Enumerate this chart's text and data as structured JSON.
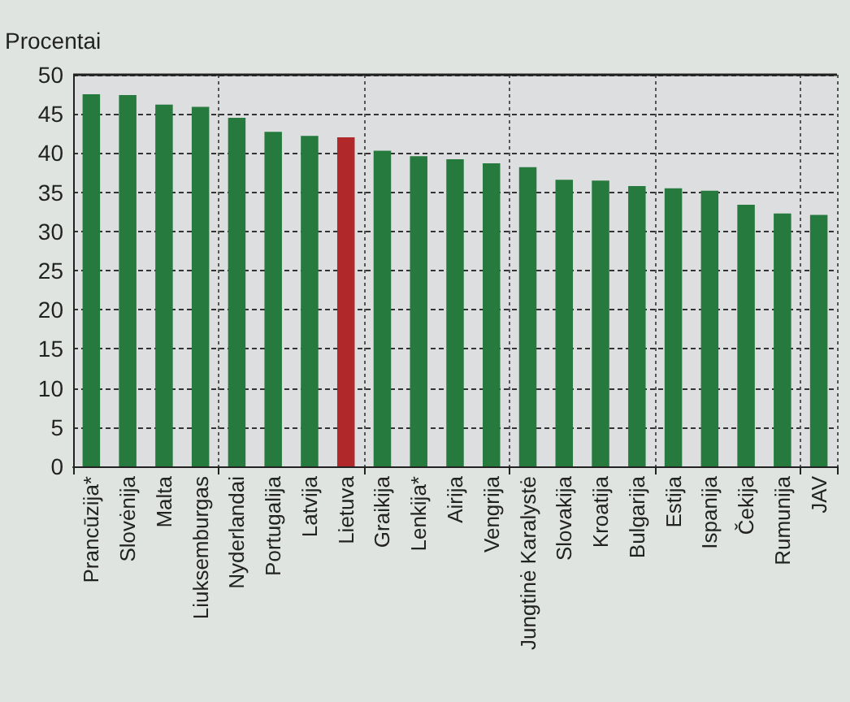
{
  "chart_data": {
    "type": "bar",
    "ylabel": "Procentai",
    "categories": [
      "Prancūzija*",
      "Slovėnija",
      "Malta",
      "Liuksemburgas",
      "Nyderlandai",
      "Portugalija",
      "Latvija",
      "Lietuva",
      "Graikija",
      "Lenkija*",
      "Airija",
      "Vengrija",
      "Jungtinė Karalystė",
      "Slovakija",
      "Kroatija",
      "Bulgarija",
      "Estija",
      "Ispanija",
      "Čekija",
      "Rumunija",
      "JAV"
    ],
    "values": [
      47.5,
      47.4,
      46.2,
      45.9,
      44.5,
      42.7,
      42.2,
      42.0,
      40.3,
      39.6,
      39.2,
      38.7,
      38.2,
      36.6,
      36.5,
      35.8,
      35.5,
      35.2,
      33.4,
      32.3,
      32.1
    ],
    "colors": [
      "#267a3e",
      "#267a3e",
      "#267a3e",
      "#267a3e",
      "#267a3e",
      "#267a3e",
      "#267a3e",
      "#b0282a",
      "#267a3e",
      "#267a3e",
      "#267a3e",
      "#267a3e",
      "#267a3e",
      "#267a3e",
      "#267a3e",
      "#267a3e",
      "#267a3e",
      "#267a3e",
      "#267a3e",
      "#267a3e",
      "#267a3e"
    ],
    "ylim": [
      0,
      50
    ],
    "yticks": [
      0,
      5,
      10,
      15,
      20,
      25,
      30,
      35,
      40,
      45,
      50
    ],
    "grid": true
  }
}
